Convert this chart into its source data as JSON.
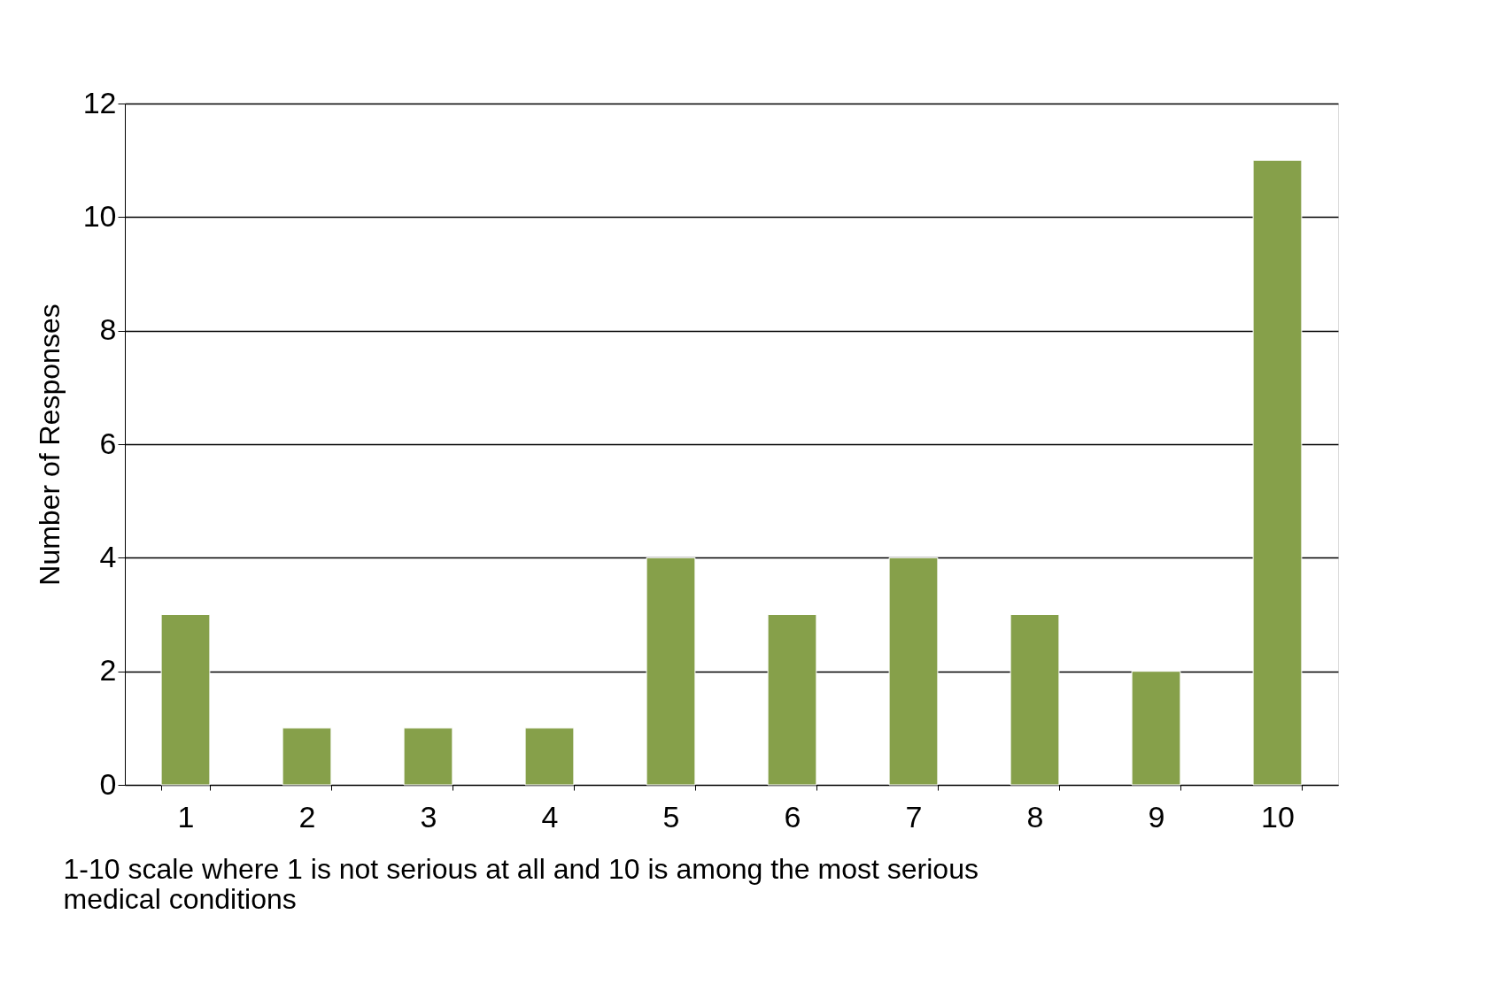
{
  "chart_data": {
    "type": "bar",
    "xlabel": "1-10 scale where 1 is not serious at all and 10 is among the most serious medical conditions",
    "ylabel": "Number of Responses",
    "categories": [
      "1",
      "2",
      "3",
      "4",
      "5",
      "6",
      "7",
      "8",
      "9",
      "10"
    ],
    "values": [
      3,
      1,
      1,
      1,
      4,
      3,
      4,
      3,
      2,
      11
    ],
    "color": "#86a04a",
    "ylim": [
      0,
      12
    ],
    "yticks": [
      0,
      2,
      4,
      6,
      8,
      10,
      12
    ],
    "grid": "y"
  }
}
